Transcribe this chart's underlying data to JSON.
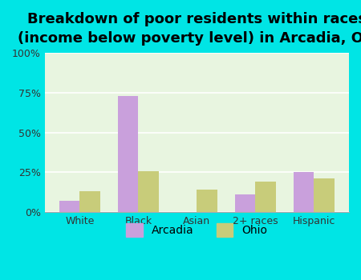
{
  "title": "Breakdown of poor residents within races\n(income below poverty level) in Arcadia, OH",
  "categories": [
    "White",
    "Black",
    "Asian",
    "2+ races",
    "Hispanic"
  ],
  "arcadia_values": [
    0.07,
    0.73,
    0.0,
    0.11,
    0.25
  ],
  "ohio_values": [
    0.13,
    0.26,
    0.14,
    0.19,
    0.21
  ],
  "arcadia_color": "#c9a0dc",
  "ohio_color": "#c8cc7a",
  "background_color": "#00e5e5",
  "plot_bg_color": "#e8f5e0",
  "yticks": [
    0.0,
    0.25,
    0.5,
    0.75,
    1.0
  ],
  "ytick_labels": [
    "0%",
    "25%",
    "50%",
    "75%",
    "100%"
  ],
  "bar_width": 0.35,
  "title_fontsize": 13,
  "legend_labels": [
    "Arcadia",
    "Ohio"
  ]
}
